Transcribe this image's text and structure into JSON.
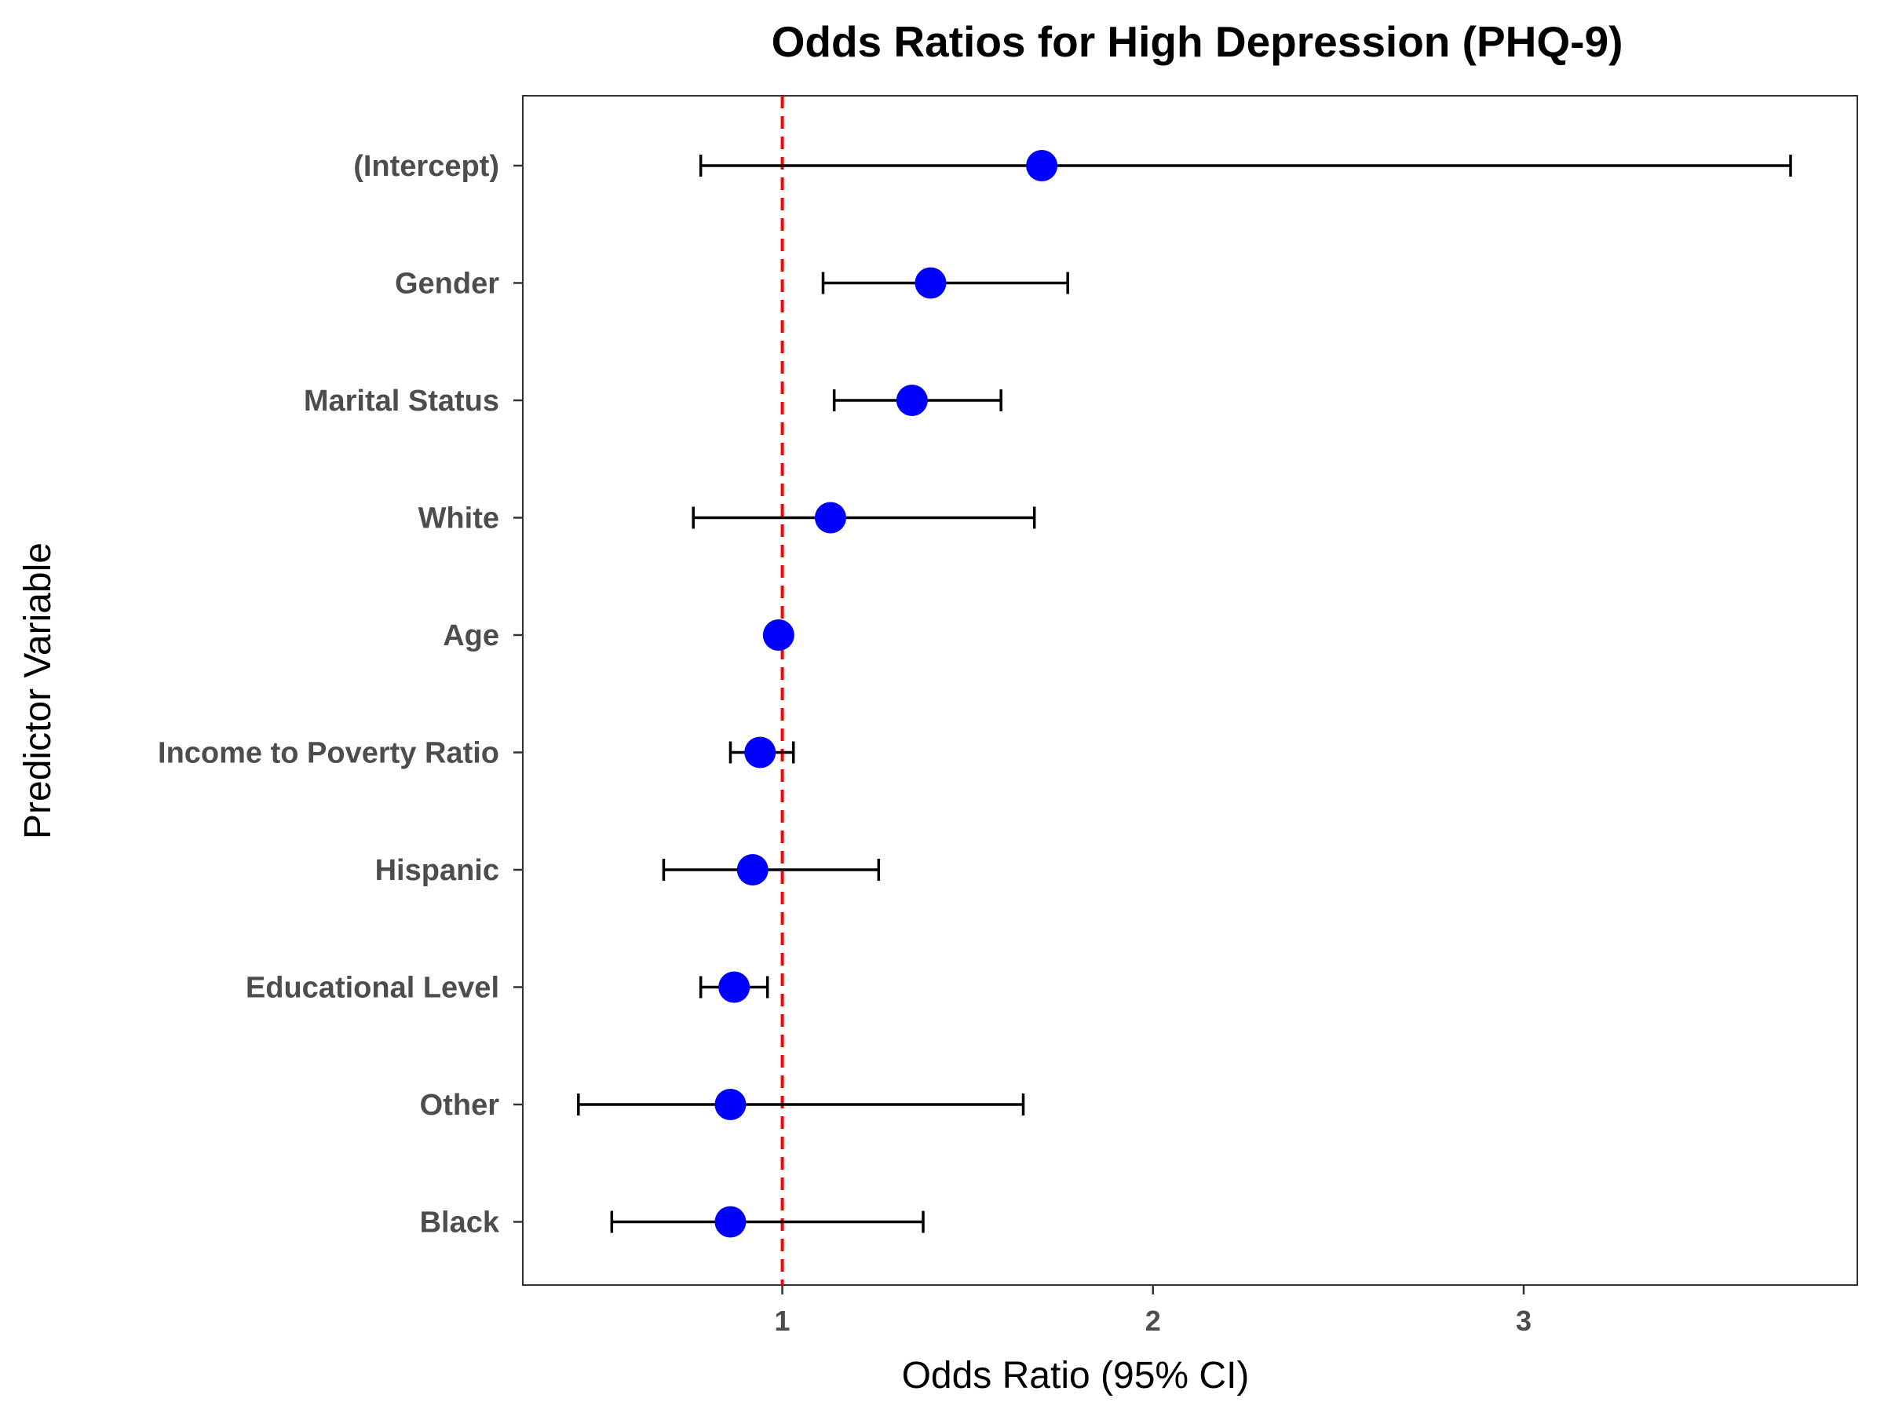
{
  "chart_data": {
    "type": "scatter",
    "title": "Odds Ratios for High Depression (PHQ-9)",
    "xlabel": "Odds Ratio (95% CI)",
    "ylabel": "Predictor Variable",
    "xlim": [
      0.3,
      3.9
    ],
    "x_ticks": [
      1,
      2,
      3
    ],
    "grid": false,
    "legend": "none",
    "reference_line": {
      "x": 1,
      "color": "#ff0000",
      "style": "dashed"
    },
    "point_color": "#0000ff",
    "errorbar_color": "#000000",
    "points": [
      {
        "label": "(Intercept)",
        "or": 1.7,
        "lower": 0.78,
        "upper": 3.72
      },
      {
        "label": "Gender",
        "or": 1.4,
        "lower": 1.11,
        "upper": 1.77
      },
      {
        "label": "Marital Status",
        "or": 1.35,
        "lower": 1.14,
        "upper": 1.59
      },
      {
        "label": "White",
        "or": 1.13,
        "lower": 0.76,
        "upper": 1.68
      },
      {
        "label": "Age",
        "or": 0.99,
        "lower": 0.98,
        "upper": 1.0
      },
      {
        "label": "Income to Poverty Ratio",
        "or": 0.94,
        "lower": 0.86,
        "upper": 1.03
      },
      {
        "label": "Hispanic",
        "or": 0.92,
        "lower": 0.68,
        "upper": 1.26
      },
      {
        "label": "Educational Level",
        "or": 0.87,
        "lower": 0.78,
        "upper": 0.96
      },
      {
        "label": "Other",
        "or": 0.86,
        "lower": 0.45,
        "upper": 1.65
      },
      {
        "label": "Black",
        "or": 0.86,
        "lower": 0.54,
        "upper": 1.38
      }
    ]
  }
}
